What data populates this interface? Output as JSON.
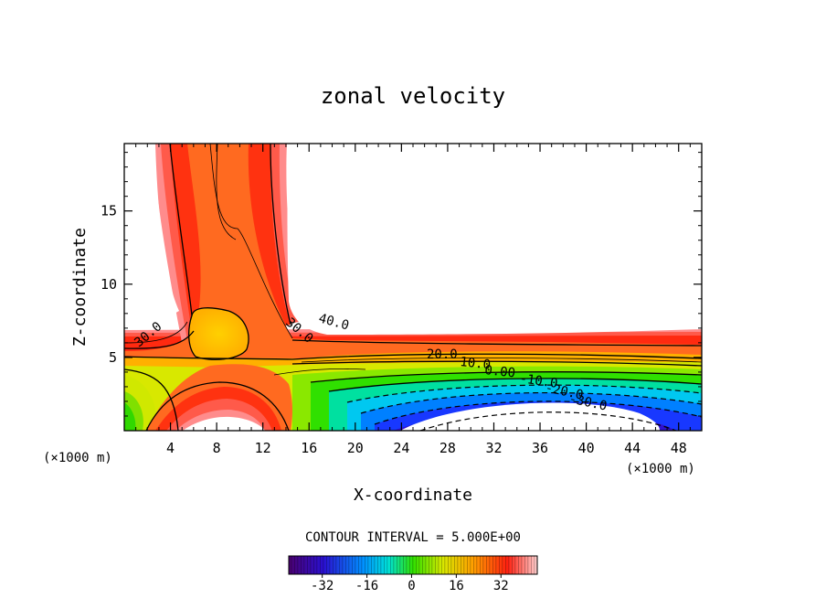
{
  "chart_data": {
    "type": "contour",
    "title": "zonal velocity",
    "xlabel": "X-coordinate",
    "ylabel": "Z-coordinate",
    "x_unit_left": "(×1000 m)",
    "x_unit_right": "(×1000 m)",
    "xlim": [
      0,
      50
    ],
    "ylim": [
      0,
      19.6
    ],
    "x_ticks": [
      "4",
      "8",
      "12",
      "16",
      "20",
      "24",
      "28",
      "32",
      "36",
      "40",
      "44",
      "48"
    ],
    "y_ticks": [
      "5",
      "10",
      "15"
    ],
    "contour_interval_text": "CONTOUR INTERVAL = 5.000E+00",
    "contour_labels": [
      "30.0",
      "30.0",
      "40.0",
      "20.0",
      "10.0",
      "0.00",
      "-10.0",
      "-20.0",
      "-30.0"
    ],
    "colorbar": {
      "tick_labels": [
        "-32",
        "-16",
        "0",
        "16",
        "32"
      ],
      "tick_values": [
        -32,
        -16,
        0,
        16,
        32
      ],
      "range": [
        -44,
        45
      ]
    },
    "blank_regions": [
      "upper-right",
      "lower-left",
      "lower-right"
    ]
  },
  "colors": {
    "red": "#ff2010",
    "orange": "#ff6a10",
    "yellow": "#ffc400",
    "green": "#3ce000",
    "cyan": "#00d8e8",
    "blue": "#1030ff",
    "purple": "#6000a0"
  }
}
